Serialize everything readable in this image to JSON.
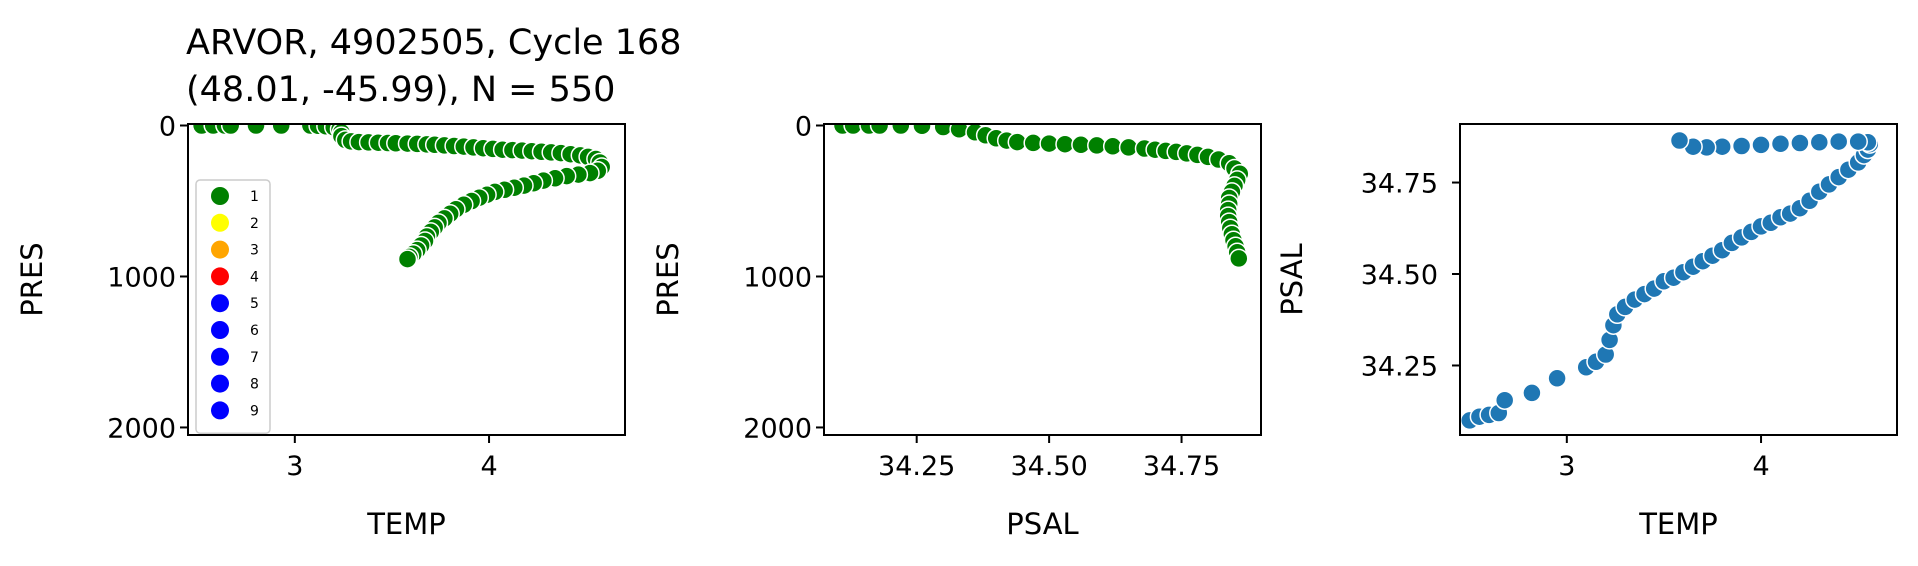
{
  "title_lines": [
    "ARVOR, 4902505, Cycle 168",
    "(48.01, -45.99), N = 550"
  ],
  "legend_entries": [
    {
      "label": "1",
      "color": "#008000"
    },
    {
      "label": "2",
      "color": "#ffff00"
    },
    {
      "label": "3",
      "color": "#ffa500"
    },
    {
      "label": "4",
      "color": "#ff0000"
    },
    {
      "label": "5",
      "color": "#0000ff"
    },
    {
      "label": "6",
      "color": "#0000ff"
    },
    {
      "label": "7",
      "color": "#0000ff"
    },
    {
      "label": "8",
      "color": "#0000ff"
    },
    {
      "label": "9",
      "color": "#0000ff"
    }
  ],
  "chart_data": [
    {
      "type": "scatter",
      "xlabel": "TEMP",
      "ylabel": "PRES",
      "xlim": [
        2.45,
        4.7
      ],
      "ylim": [
        2050,
        -10
      ],
      "y_inverted": true,
      "xticks": [
        3,
        4
      ],
      "xtick_labels": [
        "3",
        "4"
      ],
      "yticks": [
        0,
        1000,
        2000
      ],
      "ytick_labels": [
        "0",
        "1000",
        "2000"
      ],
      "marker_color": "#008000",
      "legend_position": "lower-left",
      "points": [
        [
          2.52,
          0
        ],
        [
          2.58,
          0
        ],
        [
          2.64,
          0
        ],
        [
          2.67,
          0
        ],
        [
          2.8,
          0
        ],
        [
          2.93,
          0
        ],
        [
          3.08,
          0
        ],
        [
          3.12,
          2
        ],
        [
          3.16,
          5
        ],
        [
          3.2,
          12
        ],
        [
          3.23,
          25
        ],
        [
          3.24,
          45
        ],
        [
          3.24,
          70
        ],
        [
          3.26,
          95
        ],
        [
          3.29,
          105
        ],
        [
          3.33,
          110
        ],
        [
          3.38,
          112
        ],
        [
          3.43,
          114
        ],
        [
          3.48,
          116
        ],
        [
          3.52,
          118
        ],
        [
          3.58,
          120
        ],
        [
          3.63,
          122
        ],
        [
          3.68,
          125
        ],
        [
          3.72,
          128
        ],
        [
          3.77,
          132
        ],
        [
          3.82,
          136
        ],
        [
          3.87,
          140
        ],
        [
          3.92,
          145
        ],
        [
          3.97,
          150
        ],
        [
          4.02,
          155
        ],
        [
          4.07,
          160
        ],
        [
          4.12,
          163
        ],
        [
          4.17,
          166
        ],
        [
          4.22,
          170
        ],
        [
          4.27,
          174
        ],
        [
          4.32,
          178
        ],
        [
          4.37,
          183
        ],
        [
          4.42,
          190
        ],
        [
          4.47,
          198
        ],
        [
          4.51,
          208
        ],
        [
          4.55,
          222
        ],
        [
          4.57,
          245
        ],
        [
          4.58,
          275
        ],
        [
          4.56,
          300
        ],
        [
          4.52,
          315
        ],
        [
          4.46,
          325
        ],
        [
          4.4,
          335
        ],
        [
          4.34,
          350
        ],
        [
          4.28,
          365
        ],
        [
          4.23,
          382
        ],
        [
          4.18,
          398
        ],
        [
          4.13,
          412
        ],
        [
          4.08,
          425
        ],
        [
          4.03,
          440
        ],
        [
          3.99,
          458
        ],
        [
          3.95,
          478
        ],
        [
          3.91,
          500
        ],
        [
          3.87,
          525
        ],
        [
          3.83,
          555
        ],
        [
          3.8,
          585
        ],
        [
          3.77,
          615
        ],
        [
          3.74,
          645
        ],
        [
          3.72,
          675
        ],
        [
          3.7,
          705
        ],
        [
          3.68,
          735
        ],
        [
          3.67,
          765
        ],
        [
          3.65,
          795
        ],
        [
          3.63,
          825
        ],
        [
          3.61,
          850
        ],
        [
          3.59,
          870
        ],
        [
          3.58,
          885
        ]
      ]
    },
    {
      "type": "scatter",
      "xlabel": "PSAL",
      "ylabel": "PRES",
      "xlim": [
        34.075,
        34.9
      ],
      "ylim": [
        2050,
        -10
      ],
      "y_inverted": true,
      "xticks": [
        34.25,
        34.5,
        34.75
      ],
      "xtick_labels": [
        "34.25",
        "34.50",
        "34.75"
      ],
      "yticks": [
        0,
        1000,
        2000
      ],
      "ytick_labels": [
        "0",
        "1000",
        "2000"
      ],
      "marker_color": "#008000",
      "points": [
        [
          34.11,
          0
        ],
        [
          34.13,
          0
        ],
        [
          34.16,
          0
        ],
        [
          34.18,
          0
        ],
        [
          34.22,
          0
        ],
        [
          34.26,
          2
        ],
        [
          34.3,
          10
        ],
        [
          34.33,
          25
        ],
        [
          34.36,
          45
        ],
        [
          34.38,
          65
        ],
        [
          34.4,
          85
        ],
        [
          34.42,
          100
        ],
        [
          34.44,
          110
        ],
        [
          34.47,
          115
        ],
        [
          34.5,
          120
        ],
        [
          34.53,
          124
        ],
        [
          34.56,
          128
        ],
        [
          34.59,
          132
        ],
        [
          34.62,
          138
        ],
        [
          34.65,
          145
        ],
        [
          34.68,
          152
        ],
        [
          34.7,
          160
        ],
        [
          34.72,
          168
        ],
        [
          34.74,
          175
        ],
        [
          34.76,
          185
        ],
        [
          34.78,
          195
        ],
        [
          34.8,
          208
        ],
        [
          34.82,
          225
        ],
        [
          34.84,
          250
        ],
        [
          34.85,
          285
        ],
        [
          34.86,
          320
        ],
        [
          34.855,
          360
        ],
        [
          34.85,
          400
        ],
        [
          34.845,
          440
        ],
        [
          34.84,
          480
        ],
        [
          34.84,
          520
        ],
        [
          34.838,
          560
        ],
        [
          34.838,
          600
        ],
        [
          34.84,
          640
        ],
        [
          34.842,
          680
        ],
        [
          34.845,
          720
        ],
        [
          34.848,
          760
        ],
        [
          34.852,
          800
        ],
        [
          34.855,
          840
        ],
        [
          34.858,
          880
        ]
      ]
    },
    {
      "type": "scatter",
      "xlabel": "TEMP",
      "ylabel": "PSAL",
      "xlim": [
        2.45,
        4.7
      ],
      "ylim": [
        34.06,
        34.91
      ],
      "xticks": [
        3,
        4
      ],
      "xtick_labels": [
        "3",
        "4"
      ],
      "yticks": [
        34.25,
        34.5,
        34.75
      ],
      "ytick_labels": [
        "34.25",
        "34.50",
        "34.75"
      ],
      "marker_color": "#1f77b4",
      "points": [
        [
          2.5,
          34.1
        ],
        [
          2.55,
          34.11
        ],
        [
          2.6,
          34.115
        ],
        [
          2.65,
          34.12
        ],
        [
          2.68,
          34.155
        ],
        [
          2.82,
          34.175
        ],
        [
          2.95,
          34.215
        ],
        [
          3.1,
          34.245
        ],
        [
          3.15,
          34.26
        ],
        [
          3.2,
          34.28
        ],
        [
          3.22,
          34.32
        ],
        [
          3.24,
          34.36
        ],
        [
          3.26,
          34.39
        ],
        [
          3.3,
          34.41
        ],
        [
          3.35,
          34.43
        ],
        [
          3.4,
          34.445
        ],
        [
          3.45,
          34.46
        ],
        [
          3.5,
          34.48
        ],
        [
          3.55,
          34.49
        ],
        [
          3.6,
          34.505
        ],
        [
          3.65,
          34.52
        ],
        [
          3.7,
          34.535
        ],
        [
          3.75,
          34.55
        ],
        [
          3.8,
          34.565
        ],
        [
          3.85,
          34.585
        ],
        [
          3.9,
          34.6
        ],
        [
          3.95,
          34.615
        ],
        [
          4.0,
          34.63
        ],
        [
          4.05,
          34.64
        ],
        [
          4.1,
          34.655
        ],
        [
          4.15,
          34.665
        ],
        [
          4.2,
          34.68
        ],
        [
          4.25,
          34.7
        ],
        [
          4.3,
          34.725
        ],
        [
          4.35,
          34.745
        ],
        [
          4.4,
          34.765
        ],
        [
          4.45,
          34.785
        ],
        [
          4.5,
          34.805
        ],
        [
          4.53,
          34.825
        ],
        [
          4.55,
          34.84
        ],
        [
          4.56,
          34.855
        ],
        [
          4.55,
          34.86
        ],
        [
          4.5,
          34.862
        ],
        [
          4.4,
          34.862
        ],
        [
          4.3,
          34.86
        ],
        [
          4.2,
          34.858
        ],
        [
          4.1,
          34.856
        ],
        [
          4.0,
          34.853
        ],
        [
          3.9,
          34.85
        ],
        [
          3.8,
          34.848
        ],
        [
          3.72,
          34.846
        ],
        [
          3.65,
          34.848
        ],
        [
          3.58,
          34.865
        ]
      ]
    }
  ]
}
